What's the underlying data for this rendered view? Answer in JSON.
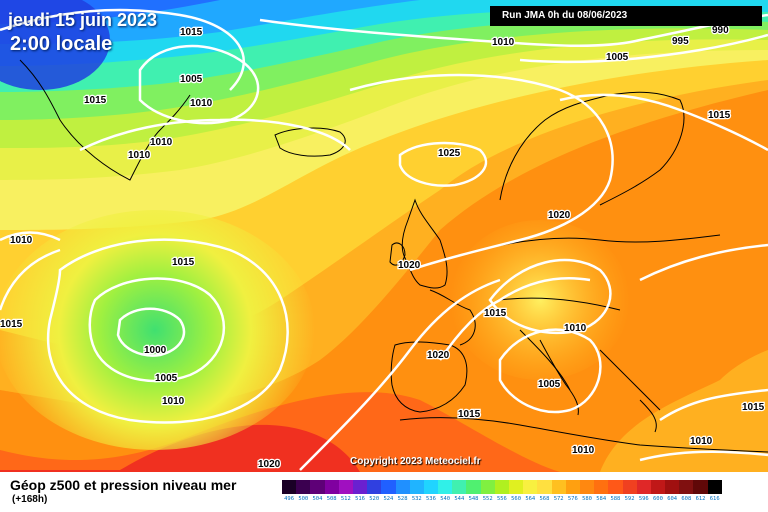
{
  "header": {
    "date": "jeudi 15 juin 2023",
    "time": "2:00 locale"
  },
  "run_info": "Run JMA 0h du 08/06/2023",
  "copyright": "Copyright 2023 Meteociel.fr",
  "footer": {
    "title": "Géop z500 et pression niveau mer",
    "subtitle": "(+168h)"
  },
  "isobar_labels": [
    "1015",
    "1010",
    "1005",
    "1015",
    "1010",
    "1010",
    "1010",
    "1010",
    "1005",
    "995",
    "990",
    "1025",
    "1015",
    "1020",
    "1020",
    "1015",
    "1015",
    "1000",
    "1005",
    "1010",
    "1015",
    "1020",
    "1010",
    "1005",
    "1020",
    "1015",
    "1010",
    "1015",
    "1010"
  ],
  "low_center_label": "1000",
  "colors": {
    "background": "#ffffff",
    "run_box": "#000000",
    "isobar": "#ffffff"
  },
  "scale": {
    "ticks": [
      "496",
      "500",
      "504",
      "508",
      "512",
      "516",
      "520",
      "524",
      "528",
      "532",
      "536",
      "540",
      "544",
      "548",
      "552",
      "556",
      "560",
      "564",
      "568",
      "572",
      "576",
      "580",
      "584",
      "588",
      "592",
      "596",
      "600",
      "604",
      "608",
      "612",
      "616"
    ],
    "colors": [
      "#1a0026",
      "#3b0050",
      "#5e0077",
      "#8000a0",
      "#a010c0",
      "#6a20d0",
      "#3040e0",
      "#2060ff",
      "#2090ff",
      "#20b4ff",
      "#20d4ff",
      "#30f0e8",
      "#40f0b0",
      "#50f070",
      "#80f040",
      "#b0f020",
      "#e0f020",
      "#f8f040",
      "#ffe040",
      "#ffc020",
      "#ffa010",
      "#ff8810",
      "#ff7010",
      "#ff5818",
      "#f04020",
      "#e02828",
      "#c01818",
      "#a01010",
      "#801010",
      "#600808",
      "#000000"
    ]
  }
}
